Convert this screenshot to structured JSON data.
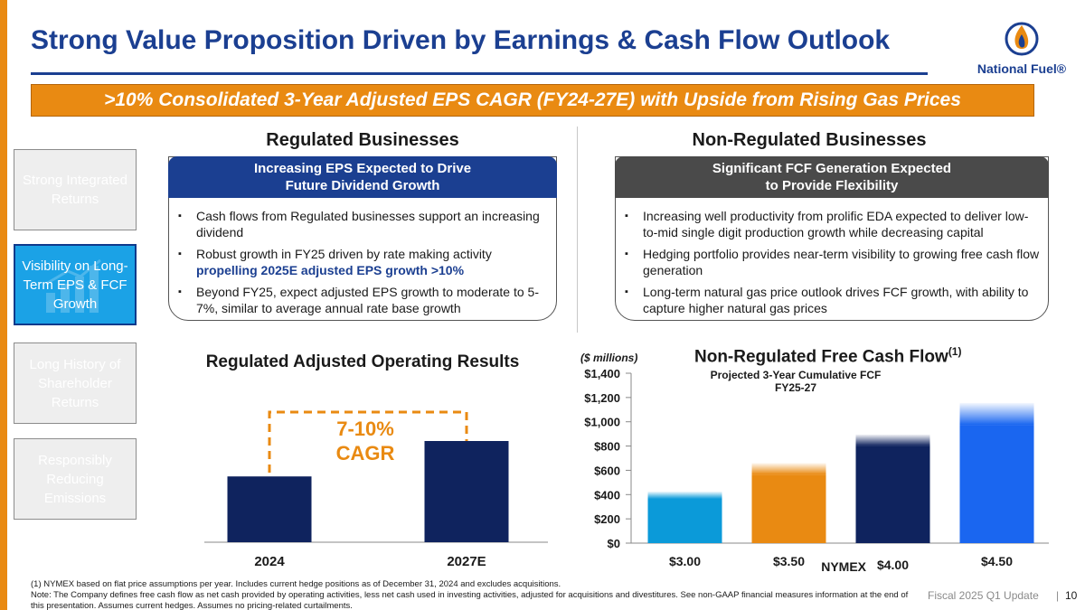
{
  "title": "Strong Value Proposition Driven by Earnings & Cash Flow Outlook",
  "logo": {
    "text": "National Fuel®"
  },
  "banner": ">10% Consolidated 3-Year Adjusted EPS CAGR (FY24-27E) with Upside from Rising Gas Prices",
  "nav": [
    {
      "label": "Strong Integrated Returns",
      "active": false
    },
    {
      "label": "Visibility on Long-Term EPS & FCF Growth",
      "active": true
    },
    {
      "label": "Long History of Shareholder Returns",
      "active": false
    },
    {
      "label": "Responsibly Reducing Emissions",
      "active": false
    }
  ],
  "regulated": {
    "heading": "Regulated Businesses",
    "card_title_1": "Increasing EPS Expected to Drive",
    "card_title_2": "Future Dividend Growth",
    "bullet_1": "Cash flows from Regulated businesses support an increasing dividend",
    "bullet_2_plain": "Robust growth in FY25 driven by rate making activity",
    "bullet_2_bold": "propelling 2025E adjusted EPS growth >10%",
    "bullet_3": "Beyond FY25, expect adjusted EPS growth to moderate to 5-7%, similar to average annual rate base growth",
    "chart_title": "Regulated Adjusted Operating Results",
    "cagr_line_1": "7-10%",
    "cagr_line_2": "CAGR"
  },
  "non_regulated": {
    "heading": "Non-Regulated Businesses",
    "card_title_1": "Significant FCF Generation Expected",
    "card_title_2": "to Provide Flexibility",
    "bullet_1": "Increasing well productivity from prolific EDA expected to deliver low-to-mid single digit production growth while decreasing capital",
    "bullet_2": "Hedging portfolio provides near-term visibility to growing free cash flow generation",
    "bullet_3": "Long-term natural gas price outlook drives FCF growth, with ability to capture higher natural gas prices",
    "units": "($ millions)",
    "chart_title": "Non-Regulated Free Cash Flow",
    "chart_title_sup": "(1)",
    "subtitle_1": "Projected 3-Year Cumulative FCF",
    "subtitle_2": "FY25-27",
    "xlabel": "NYMEX"
  },
  "chart_data": [
    {
      "type": "bar",
      "title": "Regulated Adjusted Operating Results",
      "categories": [
        "2024",
        "2027E"
      ],
      "values": [
        0.65,
        1.0
      ],
      "annotation": "7-10% CAGR",
      "colors": [
        "#0f235e",
        "#0f235e"
      ]
    },
    {
      "type": "bar",
      "title": "Non-Regulated Free Cash Flow",
      "subtitle": "Projected 3-Year Cumulative FCF FY25-27",
      "categories": [
        "$3.00",
        "$3.50",
        "$4.00",
        "$4.50"
      ],
      "values": [
        425,
        660,
        895,
        1155
      ],
      "upside_band_start": [
        365,
        565,
        800,
        975
      ],
      "colors": [
        "#0b9ad9",
        "#e98a12",
        "#0f235e",
        "#1a66f0"
      ],
      "ylabel": "($ millions)",
      "xlabel": "NYMEX",
      "ylim": [
        0,
        1400
      ],
      "yticks": [
        "$0",
        "$200",
        "$400",
        "$600",
        "$800",
        "$1,000",
        "$1,200",
        "$1,400"
      ]
    }
  ],
  "footnote_1": "(1) NYMEX based on flat price assumptions per year. Includes current hedge positions as of December 31, 2024 and excludes acquisitions.",
  "footnote_2": "Note: The Company defines free cash flow as net cash provided by operating activities, less net cash used in investing activities, adjusted for acquisitions and divestitures. See non-GAAP financial measures information at the end of this presentation. Assumes current hedges. Assumes no pricing-related curtailments.",
  "footer_label": "Fiscal 2025 Q1 Update",
  "page_number": "10"
}
